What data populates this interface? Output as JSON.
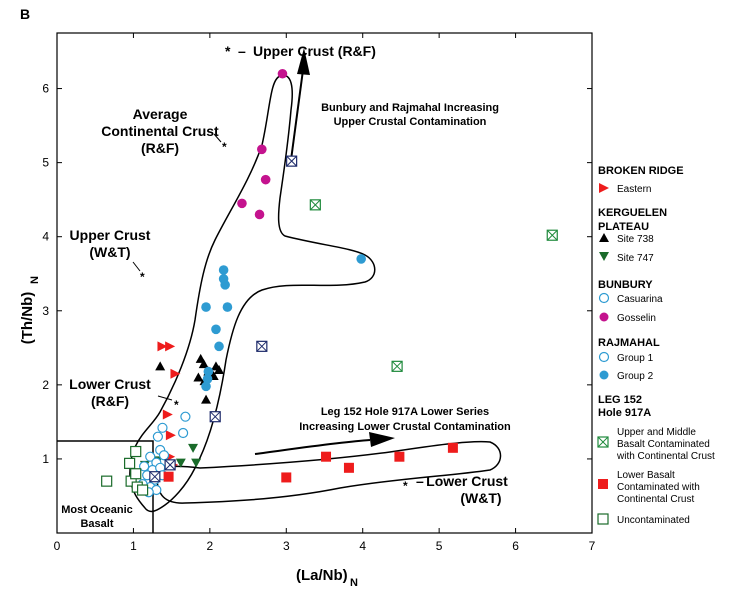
{
  "panel_label": "B",
  "colors": {
    "red": "#ee1c1c",
    "black": "#000000",
    "green": "#1a6b2a",
    "blue": "#2e9bd2",
    "magenta": "#c4138e",
    "contaminated_green": "#1f8a3c",
    "contaminated_navy": "#1d2a6a"
  },
  "annotations": {
    "upper_crust_rf": "Upper Crust (R&F)",
    "avg_cc_1": "Average",
    "avg_cc_2": "Continental Crust",
    "avg_cc_3": "(R&F)",
    "upper_wt_1": "Upper Crust",
    "upper_wt_2": "(W&T)",
    "lower_rf_1": "Lower Crust",
    "lower_rf_2": "(R&F)",
    "lower_wt_1": "Lower Crust",
    "lower_wt_2": "(W&T)",
    "bunbury_1": "Bunbury and Rajmahal  Increasing",
    "bunbury_2": "Upper Crustal Contamination",
    "leg152_1": "Leg 152 Hole 917A Lower Series",
    "leg152_2": "Increasing Lower Crustal Contamination",
    "oceanic_1": "Most Oceanic",
    "oceanic_2": "Basalt"
  },
  "legend": {
    "broken_ridge": "BROKEN RIDGE",
    "eastern": "Eastern",
    "kerguelen_1": "KERGUELEN",
    "kerguelen_2": "PLATEAU",
    "site738": "Site 738",
    "site747": "Site 747",
    "bunbury": "BUNBURY",
    "casuarina": "Casuarina",
    "gosselin": "Gosselin",
    "rajmahal": "RAJMAHAL",
    "group1": "Group 1",
    "group2": "Group 2",
    "leg152_1": "LEG  152",
    "leg152_2": "Hole 917A",
    "upper_middle_1": "Upper and Middle",
    "upper_middle_2": "Basalt  Contaminated",
    "upper_middle_3": "with Continental Crust",
    "lower_basalt_1": "Lower Basalt",
    "lower_basalt_2": "Contaminated with",
    "lower_basalt_3": "Continental Crust",
    "uncontaminated": "Uncontaminated"
  },
  "chart_data": {
    "type": "scatter",
    "xlabel": "(La/Nb)",
    "xlabel_sub": "N",
    "ylabel": "(Th/Nb)",
    "ylabel_sub": "N",
    "xlim": [
      0,
      7
    ],
    "ylim": [
      0,
      6.75
    ],
    "xticks": [
      0,
      1,
      2,
      3,
      4,
      5,
      6,
      7
    ],
    "yticks": [
      1,
      2,
      3,
      4,
      5,
      6
    ],
    "grid": false,
    "legend_position": "right",
    "series": [
      {
        "name": "Eastern",
        "marker": "triangle-right",
        "color": "#ee1c1c",
        "points": [
          [
            1.38,
            2.52
          ],
          [
            1.48,
            2.52
          ],
          [
            1.55,
            2.15
          ],
          [
            1.45,
            1.6
          ],
          [
            1.49,
            1.32
          ],
          [
            1.48,
            1.03
          ],
          [
            1.52,
            0.92
          ]
        ]
      },
      {
        "name": "Site 738",
        "marker": "triangle-up",
        "color": "#000000",
        "points": [
          [
            1.35,
            2.25
          ],
          [
            1.88,
            2.35
          ],
          [
            1.92,
            2.28
          ],
          [
            1.98,
            2.18
          ],
          [
            2.05,
            2.12
          ],
          [
            2.08,
            2.25
          ],
          [
            2.12,
            2.2
          ],
          [
            1.85,
            2.1
          ],
          [
            1.93,
            2.05
          ],
          [
            2.02,
            2.15
          ],
          [
            1.95,
            1.8
          ]
        ]
      },
      {
        "name": "Site 747",
        "marker": "triangle-down",
        "color": "#1a6b2a",
        "points": [
          [
            1.78,
            1.15
          ],
          [
            1.82,
            0.95
          ],
          [
            1.62,
            0.95
          ],
          [
            1.15,
            0.92
          ],
          [
            1.32,
            0.98
          ]
        ]
      },
      {
        "name": "Casuarina",
        "marker": "circle-open",
        "color": "#2e9bd2",
        "points": [
          [
            1.68,
            1.57
          ],
          [
            1.65,
            1.35
          ],
          [
            1.38,
            1.42
          ],
          [
            1.32,
            1.3
          ],
          [
            1.35,
            1.12
          ],
          [
            1.4,
            1.05
          ],
          [
            1.22,
            1.03
          ],
          [
            1.3,
            0.95
          ],
          [
            1.25,
            0.85
          ],
          [
            1.35,
            0.88
          ],
          [
            1.18,
            0.78
          ],
          [
            1.28,
            0.72
          ],
          [
            1.22,
            0.62
          ],
          [
            1.3,
            0.58
          ],
          [
            1.14,
            0.9
          ],
          [
            1.12,
            0.66
          ],
          [
            1.38,
            0.78
          ],
          [
            1.2,
            0.55
          ]
        ]
      },
      {
        "name": "Gosselin",
        "marker": "circle-filled",
        "color": "#c4138e",
        "points": [
          [
            2.95,
            6.2
          ],
          [
            2.68,
            5.18
          ],
          [
            2.73,
            4.77
          ],
          [
            2.42,
            4.45
          ],
          [
            2.65,
            4.3
          ]
        ]
      },
      {
        "name": "Group 2",
        "marker": "circle-filled",
        "color": "#2e9bd2",
        "points": [
          [
            2.18,
            3.55
          ],
          [
            2.18,
            3.43
          ],
          [
            2.2,
            3.35
          ],
          [
            1.95,
            3.05
          ],
          [
            2.23,
            3.05
          ],
          [
            3.98,
            3.7
          ],
          [
            2.08,
            2.75
          ],
          [
            2.12,
            2.52
          ],
          [
            1.98,
            2.18
          ],
          [
            1.97,
            2.08
          ],
          [
            1.95,
            1.98
          ]
        ]
      },
      {
        "name": "Upper and Middle Basalt Contaminated with Continental Crust",
        "marker": "square-x",
        "color": "#1f8a3c",
        "points": [
          [
            3.38,
            4.43
          ],
          [
            4.45,
            2.25
          ],
          [
            6.48,
            4.02
          ]
        ]
      },
      {
        "name": "Upper and Middle Basalt Contaminated with Continental Crust (navy)",
        "marker": "square-x",
        "color": "#1d2a6a",
        "points": [
          [
            3.07,
            5.02
          ],
          [
            2.68,
            2.52
          ],
          [
            2.07,
            1.57
          ],
          [
            1.48,
            0.92
          ],
          [
            1.28,
            0.76
          ]
        ]
      },
      {
        "name": "Lower Basalt Contaminated with Continental Crust",
        "marker": "square-filled",
        "color": "#ee1c1c",
        "points": [
          [
            3.0,
            0.75
          ],
          [
            3.52,
            1.03
          ],
          [
            3.82,
            0.88
          ],
          [
            4.48,
            1.03
          ],
          [
            5.18,
            1.15
          ],
          [
            1.46,
            0.76
          ]
        ]
      },
      {
        "name": "Uncontaminated",
        "marker": "square-open",
        "color": "#1a6b2a",
        "points": [
          [
            0.65,
            0.7
          ],
          [
            0.95,
            0.94
          ],
          [
            0.97,
            0.7
          ],
          [
            1.03,
            0.8
          ],
          [
            1.03,
            1.1
          ],
          [
            1.05,
            0.62
          ],
          [
            1.12,
            0.58
          ]
        ]
      }
    ]
  }
}
